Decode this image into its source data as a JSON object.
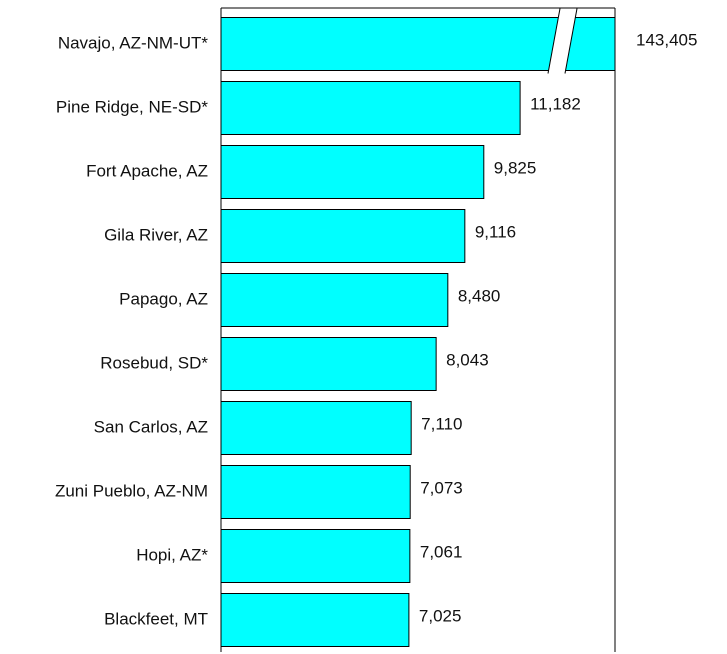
{
  "chart_data": {
    "type": "bar",
    "orientation": "horizontal",
    "categories": [
      "Navajo, AZ-NM-UT*",
      "Pine Ridge, NE-SD*",
      "Fort Apache, AZ",
      "Gila River, AZ",
      "Papago, AZ",
      "Rosebud, SD*",
      "San Carlos, AZ",
      "Zuni Pueblo, AZ-NM",
      "Hopi, AZ*",
      "Blackfeet, MT"
    ],
    "values": [
      143405,
      11182,
      9825,
      9116,
      8480,
      8043,
      7110,
      7073,
      7061,
      7025
    ],
    "value_labels": [
      "143,405",
      "11,182",
      "9,825",
      "9,116",
      "8,480",
      "8,043",
      "7,110",
      "7,073",
      "7,061",
      "7,025"
    ],
    "color": "#00ffff",
    "xlim": [
      0,
      14730
    ]
  }
}
